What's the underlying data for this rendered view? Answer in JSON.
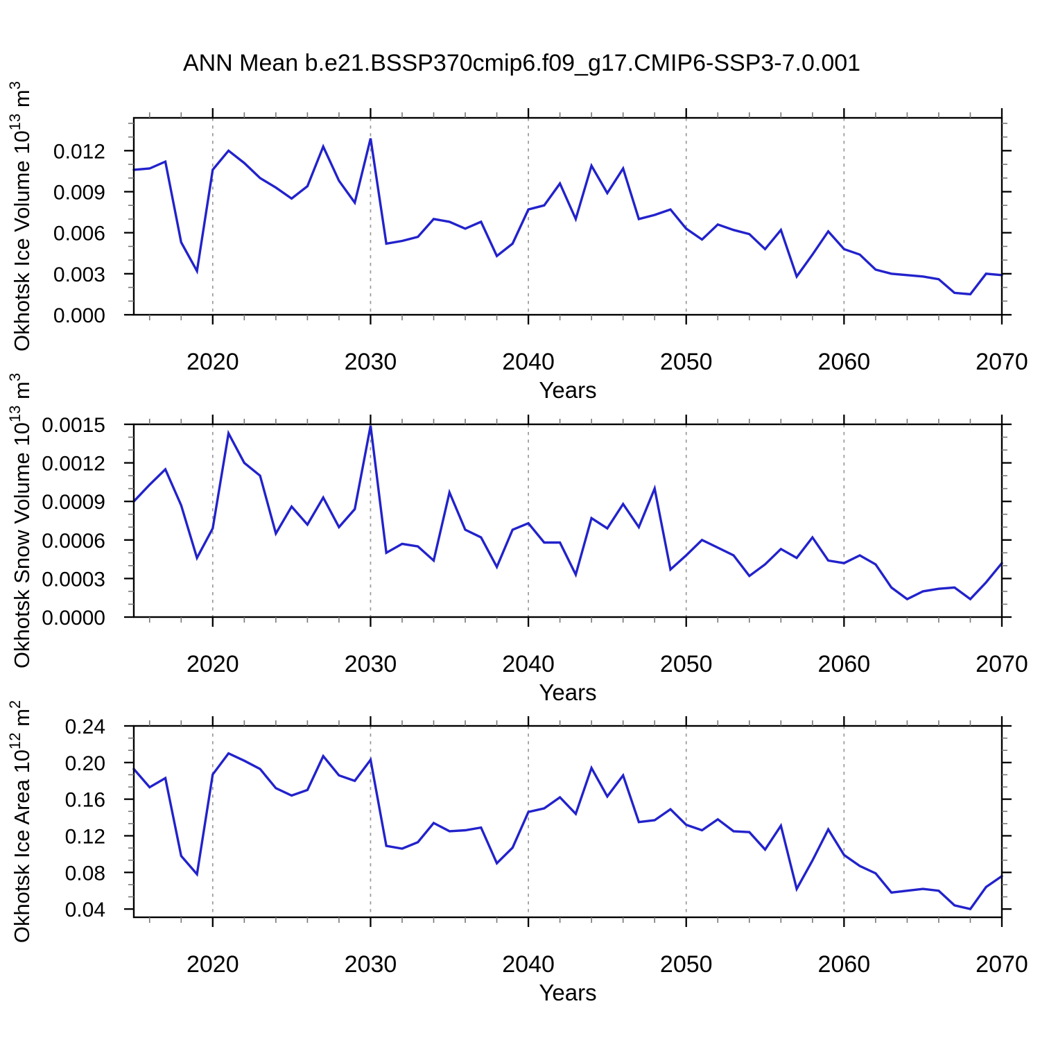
{
  "title": "ANN Mean b.e21.BSSP370cmip6.f09_g17.CMIP6-SSP3-7.0.001",
  "figure": {
    "background": "#ffffff",
    "line_color": "#2222cc",
    "grid_color": "#999999",
    "axis_color": "#000000",
    "minor_tick_color": "#777777",
    "text_color": "#000000"
  },
  "years": [
    2015,
    2016,
    2017,
    2018,
    2019,
    2020,
    2021,
    2022,
    2023,
    2024,
    2025,
    2026,
    2027,
    2028,
    2029,
    2030,
    2031,
    2032,
    2033,
    2034,
    2035,
    2036,
    2037,
    2038,
    2039,
    2040,
    2041,
    2042,
    2043,
    2044,
    2045,
    2046,
    2047,
    2048,
    2049,
    2050,
    2051,
    2052,
    2053,
    2054,
    2055,
    2056,
    2057,
    2058,
    2059,
    2060,
    2061,
    2062,
    2063,
    2064,
    2065,
    2066,
    2067,
    2068,
    2069,
    2070
  ],
  "chart_data": [
    {
      "type": "line",
      "name": "okhotsk-ice-volume",
      "ylabel_text": "Okhotsk Ice Volume 10^13 m^3",
      "ylabel_parts": [
        {
          "t": "Okhotsk Ice Volume 10"
        },
        {
          "t": "13",
          "sup": true
        },
        {
          "t": " m"
        },
        {
          "t": "3",
          "sup": true
        }
      ],
      "xlabel": "Years",
      "xticks": [
        2020,
        2030,
        2040,
        2050,
        2060,
        2070
      ],
      "x_minor_step": 2,
      "xlim": [
        2015,
        2070
      ],
      "ylim": [
        0,
        0.0144
      ],
      "yticks": [
        {
          "v": 0.0,
          "label": "0.000"
        },
        {
          "v": 0.003,
          "label": "0.003"
        },
        {
          "v": 0.006,
          "label": "0.006"
        },
        {
          "v": 0.009,
          "label": "0.009"
        },
        {
          "v": 0.012,
          "label": "0.012"
        }
      ],
      "y_minor_step": 0.001,
      "grid_x_dashed": true,
      "values": [
        0.0106,
        0.0107,
        0.0112,
        0.0053,
        0.0032,
        0.0106,
        0.012,
        0.0111,
        0.01,
        0.0093,
        0.0085,
        0.0094,
        0.0123,
        0.0098,
        0.0082,
        0.0129,
        0.0052,
        0.0054,
        0.0057,
        0.007,
        0.0068,
        0.0063,
        0.0068,
        0.0043,
        0.0052,
        0.0077,
        0.008,
        0.0096,
        0.007,
        0.0109,
        0.0089,
        0.0107,
        0.007,
        0.0073,
        0.0077,
        0.0063,
        0.0055,
        0.0066,
        0.0062,
        0.0059,
        0.0048,
        0.0062,
        0.0028,
        0.0044,
        0.0061,
        0.0048,
        0.0044,
        0.0033,
        0.003,
        0.0029,
        0.0028,
        0.0026,
        0.0016,
        0.0015,
        0.003,
        0.0029
      ]
    },
    {
      "type": "line",
      "name": "okhotsk-snow-volume",
      "ylabel_text": "Okhotsk Snow Volume 10^13 m^3",
      "ylabel_parts": [
        {
          "t": "Okhotsk Snow Volume 10"
        },
        {
          "t": "13",
          "sup": true
        },
        {
          "t": " m"
        },
        {
          "t": "3",
          "sup": true
        }
      ],
      "xlabel": "Years",
      "xticks": [
        2020,
        2030,
        2040,
        2050,
        2060,
        2070
      ],
      "x_minor_step": 2,
      "xlim": [
        2015,
        2070
      ],
      "ylim": [
        0,
        0.0015
      ],
      "yticks": [
        {
          "v": 0.0,
          "label": "0.0000"
        },
        {
          "v": 0.0003,
          "label": "0.0003"
        },
        {
          "v": 0.0006,
          "label": "0.0006"
        },
        {
          "v": 0.0009,
          "label": "0.0009"
        },
        {
          "v": 0.0012,
          "label": "0.0012"
        },
        {
          "v": 0.0015,
          "label": "0.0015"
        }
      ],
      "y_minor_step": 0.0001,
      "grid_x_dashed": true,
      "values": [
        0.0009,
        0.00103,
        0.00115,
        0.00087,
        0.00046,
        0.00069,
        0.00143,
        0.0012,
        0.0011,
        0.00065,
        0.00086,
        0.00072,
        0.00093,
        0.0007,
        0.00084,
        0.00149,
        0.0005,
        0.00057,
        0.00055,
        0.00044,
        0.00097,
        0.00068,
        0.00062,
        0.00039,
        0.00068,
        0.00073,
        0.00058,
        0.00058,
        0.00033,
        0.00077,
        0.00069,
        0.00088,
        0.0007,
        0.001,
        0.00037,
        0.00048,
        0.0006,
        0.00054,
        0.00048,
        0.00032,
        0.00041,
        0.00053,
        0.00046,
        0.00062,
        0.00044,
        0.00042,
        0.00048,
        0.00041,
        0.00023,
        0.00014,
        0.0002,
        0.00022,
        0.00023,
        0.00014,
        0.00027,
        0.00042
      ]
    },
    {
      "type": "line",
      "name": "okhotsk-ice-area",
      "ylabel_text": "Okhotsk Ice Area 10^12 m^2",
      "ylabel_parts": [
        {
          "t": "Okhotsk Ice Area 10"
        },
        {
          "t": "12",
          "sup": true
        },
        {
          "t": " m"
        },
        {
          "t": "2",
          "sup": true
        }
      ],
      "xlabel": "Years",
      "xticks": [
        2020,
        2030,
        2040,
        2050,
        2060,
        2070
      ],
      "x_minor_step": 2,
      "xlim": [
        2015,
        2070
      ],
      "ylim": [
        0.031,
        0.24
      ],
      "yticks": [
        {
          "v": 0.04,
          "label": "0.04"
        },
        {
          "v": 0.08,
          "label": "0.08"
        },
        {
          "v": 0.12,
          "label": "0.12"
        },
        {
          "v": 0.16,
          "label": "0.16"
        },
        {
          "v": 0.2,
          "label": "0.20"
        },
        {
          "v": 0.24,
          "label": "0.24"
        }
      ],
      "y_minor_step": 0.0133333,
      "grid_x_dashed": true,
      "values": [
        0.193,
        0.173,
        0.183,
        0.098,
        0.078,
        0.187,
        0.21,
        0.202,
        0.193,
        0.172,
        0.164,
        0.17,
        0.207,
        0.186,
        0.18,
        0.203,
        0.109,
        0.106,
        0.113,
        0.134,
        0.125,
        0.126,
        0.129,
        0.09,
        0.107,
        0.146,
        0.15,
        0.162,
        0.144,
        0.194,
        0.163,
        0.186,
        0.135,
        0.137,
        0.149,
        0.132,
        0.126,
        0.138,
        0.125,
        0.124,
        0.105,
        0.131,
        0.062,
        0.093,
        0.127,
        0.099,
        0.087,
        0.079,
        0.058,
        0.06,
        0.062,
        0.06,
        0.044,
        0.04,
        0.064,
        0.076
      ]
    }
  ]
}
